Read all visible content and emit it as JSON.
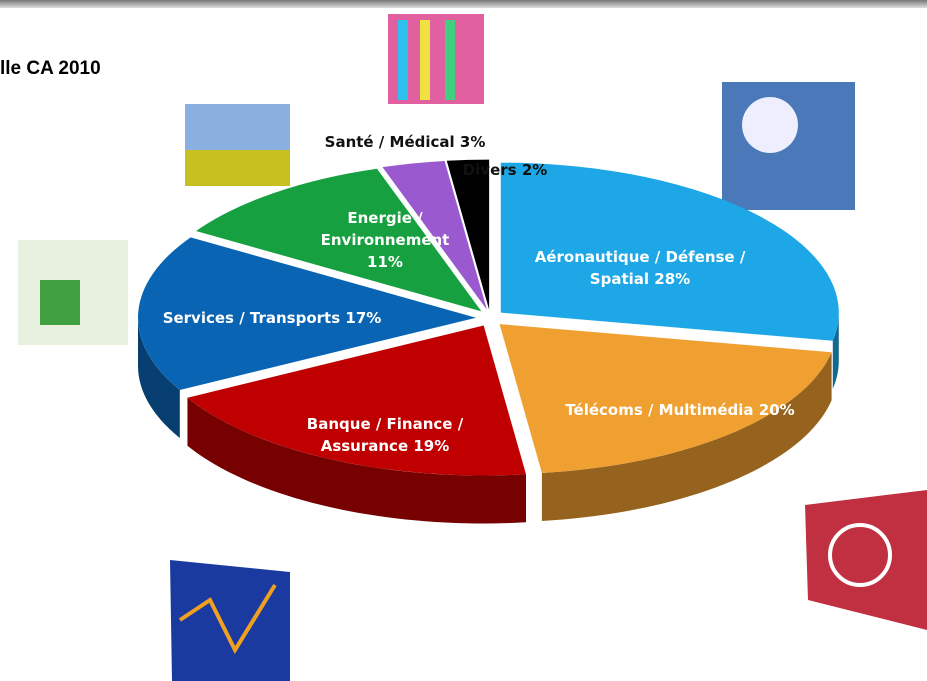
{
  "chart_data": {
    "type": "pie",
    "title": "lle CA 2010",
    "categories": [
      "Aéronautique / Défense / Spatial",
      "Télécoms / Multimédia",
      "Banque / Finance / Assurance",
      "Services / Transports",
      "Energie / Environnement",
      "Santé / Médical",
      "Divers"
    ],
    "values": [
      28,
      20,
      19,
      17,
      11,
      3,
      2
    ],
    "value_labels": [
      "28%",
      "20%",
      "19%",
      "17%",
      "11%",
      "3%",
      "2%"
    ],
    "colors": [
      "#1ea7e6",
      "#f0a030",
      "#c00000",
      "#0a64b4",
      "#17a040",
      "#9b59d0",
      "#000000"
    ]
  }
}
